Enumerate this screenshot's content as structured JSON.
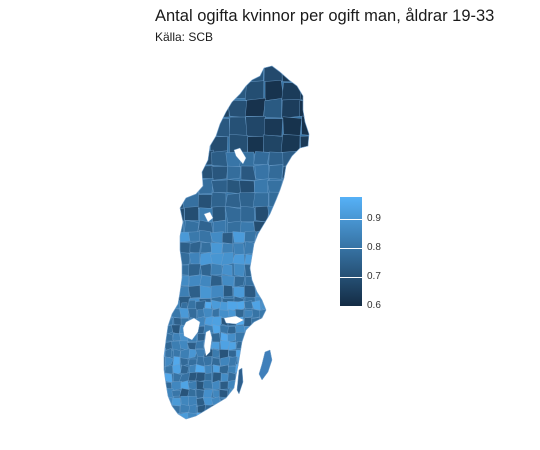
{
  "title": "Antal ogifta kvinnor per ogift man, åldrar 19-33",
  "subtitle": "Källa: SCB",
  "colors": {
    "low": "#132b43",
    "high": "#56b1f7",
    "border": "#6f9fcb",
    "background": "#ffffff"
  },
  "legend": {
    "min": 0.595,
    "max": 0.975,
    "ticks": [
      {
        "value": 0.9,
        "label": "0.9"
      },
      {
        "value": 0.8,
        "label": "0.8"
      },
      {
        "value": 0.7,
        "label": "0.7"
      },
      {
        "value": 0.6,
        "label": "0.6"
      }
    ]
  }
}
